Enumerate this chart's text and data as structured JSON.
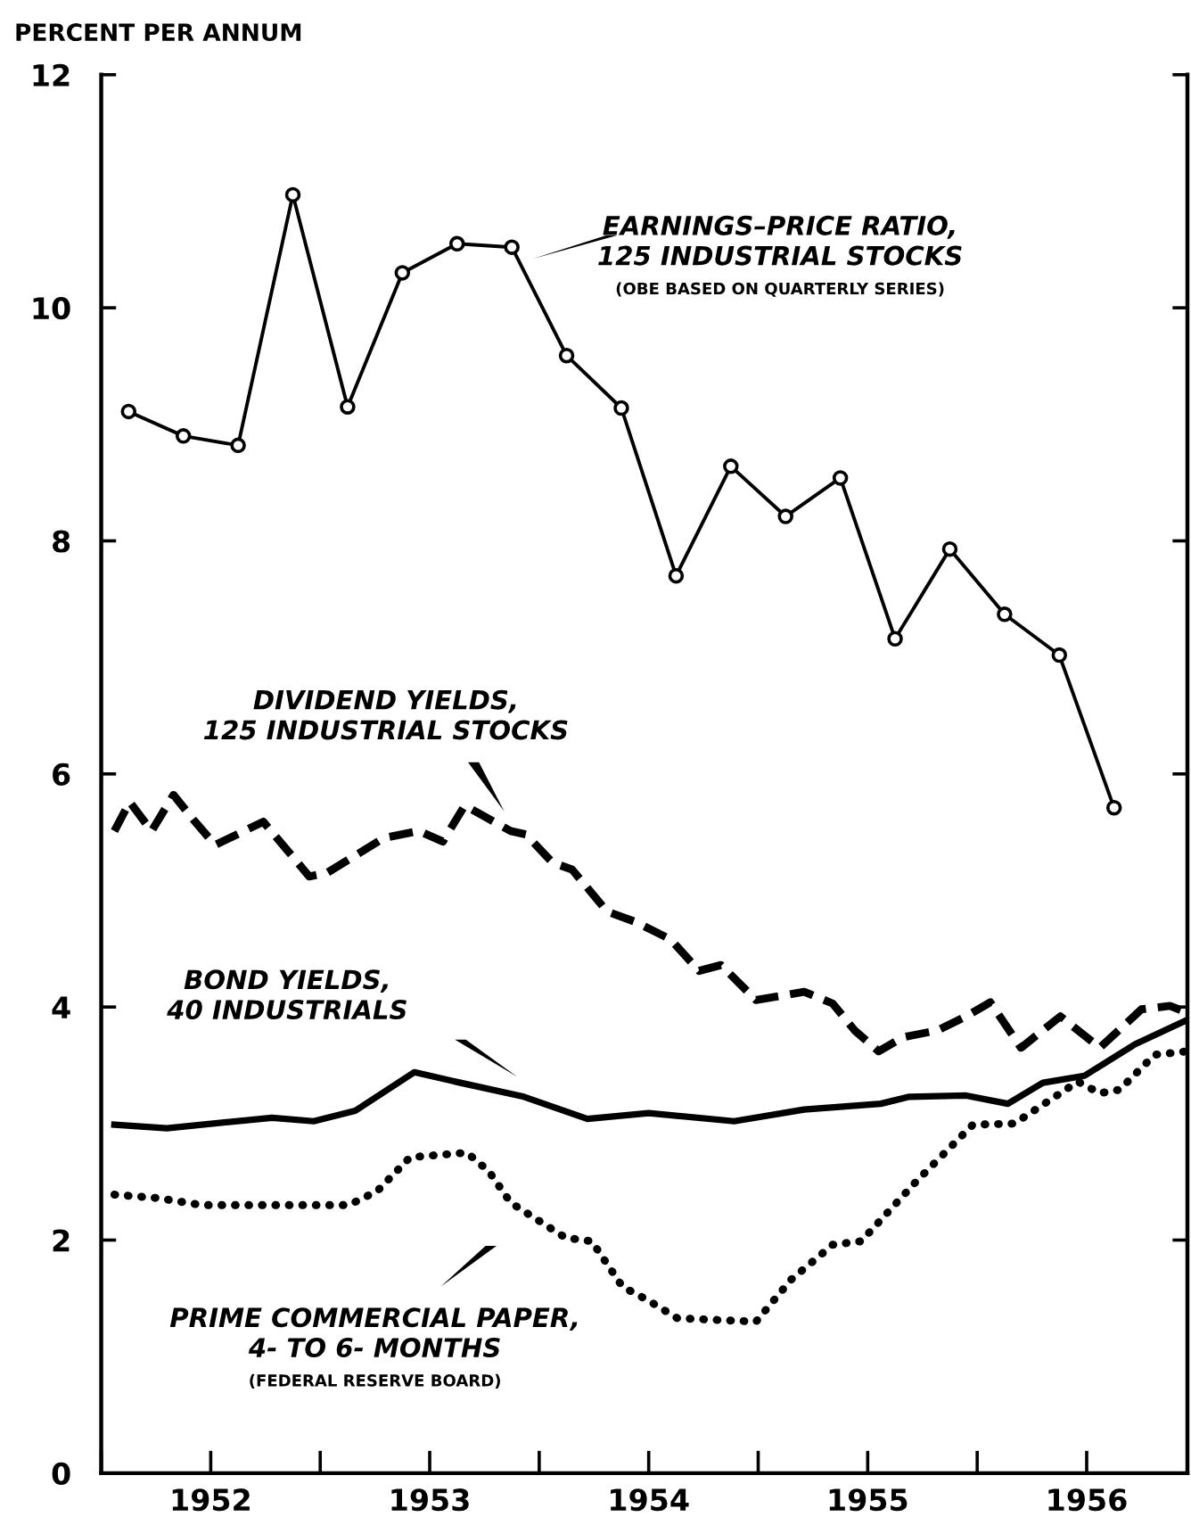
{
  "chart_data": {
    "type": "line",
    "ylabel": "PERCENT PER ANNUM",
    "xlim": [
      1952,
      1956.96
    ],
    "ylim": [
      0,
      12
    ],
    "yticks": [
      0,
      2,
      4,
      6,
      8,
      10,
      12
    ],
    "xticks": [
      {
        "value": 1952,
        "label": null
      },
      {
        "value": 1952.5,
        "label": "1952"
      },
      {
        "value": 1953,
        "label": null
      },
      {
        "value": 1953.5,
        "label": "1953"
      },
      {
        "value": 1954,
        "label": null
      },
      {
        "value": 1954.5,
        "label": "1954"
      },
      {
        "value": 1955,
        "label": null
      },
      {
        "value": 1955.5,
        "label": "1955"
      },
      {
        "value": 1956,
        "label": null
      },
      {
        "value": 1956.5,
        "label": "1956"
      }
    ],
    "grid": false,
    "series": [
      {
        "name": "EARNINGS–PRICE RATIO,\n125 INDUSTRIAL STOCKS",
        "color": "#000000",
        "marker": "circle",
        "line_style": "solid",
        "x": [
          1952.125,
          1952.375,
          1952.625,
          1952.875,
          1953.125,
          1953.375,
          1953.625,
          1953.875,
          1954.125,
          1954.375,
          1954.625,
          1954.875,
          1955.125,
          1955.375,
          1955.625,
          1955.875,
          1956.125,
          1956.375,
          1956.625
        ],
        "values": [
          9.11,
          8.9,
          8.82,
          10.97,
          9.15,
          10.3,
          10.55,
          10.52,
          9.59,
          9.14,
          7.7,
          8.64,
          8.21,
          8.54,
          7.16,
          7.93,
          7.37,
          7.02,
          5.71
        ]
      },
      {
        "name": "DIVIDEND YIELDS,\n125 INDUSTRIAL STOCKS",
        "color": "#000000",
        "marker": "none",
        "line_style": "dashed",
        "x": [
          1952.06,
          1952.13,
          1952.23,
          1952.33,
          1952.42,
          1952.52,
          1952.74,
          1952.95,
          1953.03,
          1953.29,
          1953.45,
          1953.56,
          1953.66,
          1953.87,
          1953.94,
          1954.06,
          1954.15,
          1954.31,
          1954.44,
          1954.6,
          1954.73,
          1954.83,
          1954.99,
          1955.21,
          1955.34,
          1955.44,
          1955.55,
          1955.66,
          1955.82,
          1955.95,
          1956.06,
          1956.2,
          1956.38,
          1956.56,
          1956.75,
          1956.88,
          1956.96
        ],
        "values": [
          5.51,
          5.76,
          5.51,
          5.82,
          5.61,
          5.39,
          5.59,
          5.12,
          5.15,
          5.45,
          5.51,
          5.42,
          5.73,
          5.51,
          5.48,
          5.24,
          5.18,
          4.82,
          4.73,
          4.58,
          4.31,
          4.36,
          4.06,
          4.13,
          4.03,
          3.8,
          3.62,
          3.74,
          3.8,
          3.92,
          4.04,
          3.65,
          3.92,
          3.65,
          3.98,
          4.01,
          3.95
        ]
      },
      {
        "name": "BOND YIELDS,\n40 INDUSTRIALS",
        "color": "#000000",
        "marker": "none",
        "line_style": "solid",
        "x": [
          1952.06,
          1952.3,
          1952.78,
          1952.97,
          1953.16,
          1953.43,
          1953.64,
          1953.93,
          1954.22,
          1954.5,
          1954.89,
          1955.21,
          1955.56,
          1955.69,
          1955.95,
          1956.14,
          1956.3,
          1956.49,
          1956.72,
          1956.96
        ],
        "values": [
          2.99,
          2.96,
          3.05,
          3.02,
          3.11,
          3.44,
          3.35,
          3.23,
          3.04,
          3.09,
          3.02,
          3.12,
          3.17,
          3.23,
          3.24,
          3.17,
          3.35,
          3.41,
          3.68,
          3.89
        ]
      },
      {
        "name": "PRIME COMMERCIAL PAPER,\n4- TO 6- MONTHS",
        "color": "#000000",
        "marker": "none",
        "line_style": "dotted",
        "x": [
          1952.06,
          1952.26,
          1952.46,
          1953.13,
          1953.26,
          1953.41,
          1953.67,
          1953.77,
          1953.87,
          1954.12,
          1954.24,
          1954.38,
          1954.5,
          1954.63,
          1954.99,
          1955.15,
          1955.34,
          1955.47,
          1955.72,
          1955.98,
          1956.17,
          1956.46,
          1956.56,
          1956.65,
          1956.81,
          1956.96
        ],
        "values": [
          2.39,
          2.36,
          2.3,
          2.3,
          2.42,
          2.71,
          2.75,
          2.59,
          2.32,
          2.02,
          1.99,
          1.6,
          1.48,
          1.33,
          1.3,
          1.66,
          1.96,
          1.99,
          2.5,
          2.99,
          3.0,
          3.36,
          3.26,
          3.29,
          3.59,
          3.62
        ]
      }
    ],
    "annotations": [
      "(OBE BASED ON QUARTERLY SERIES)",
      "(FEDERAL RESERVE BOARD)"
    ]
  }
}
